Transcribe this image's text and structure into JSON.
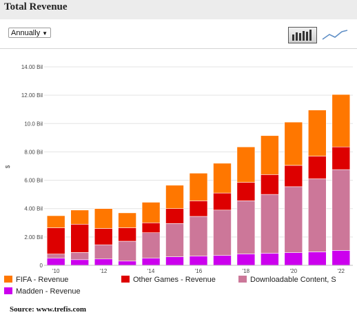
{
  "header": {
    "title": "Total Revenue"
  },
  "toolbar": {
    "period": "Annually",
    "bar_view_icon": "bar-chart-icon",
    "line_view_icon": "line-chart-icon"
  },
  "source": "Source: www.trefis.com",
  "chart_data": {
    "type": "bar",
    "stacked": true,
    "x": [
      2010,
      2011,
      2012,
      2013,
      2014,
      2015,
      2016,
      2017,
      2018,
      2019,
      2020,
      2021,
      2022
    ],
    "x_tick_labels": [
      "'10",
      "",
      "'12",
      "",
      "'14",
      "",
      "'16",
      "",
      "'18",
      "",
      "'20",
      "",
      "'22"
    ],
    "ylabel": "$",
    "ylim": [
      0,
      14
    ],
    "y_ticks": [
      0,
      2,
      4,
      6,
      8,
      10,
      12,
      14
    ],
    "y_tick_labels": [
      "0",
      "2.00 Bil",
      "4.00 Bil",
      "6.00 Bil",
      "8.00 Bil",
      "10.0 Bil",
      "12.00 Bil",
      "14.00 Bil"
    ],
    "grid": true,
    "legend_position": "bottom",
    "series": [
      {
        "name": "Madden - Revenue",
        "color": "#cc00ee",
        "values": [
          0.5,
          0.4,
          0.45,
          0.3,
          0.5,
          0.6,
          0.65,
          0.7,
          0.8,
          0.85,
          0.9,
          0.95,
          1.05
        ]
      },
      {
        "name": "Downloadable Content, S",
        "color": "#cc7799",
        "values": [
          0.3,
          0.5,
          1.0,
          1.4,
          1.8,
          2.35,
          2.8,
          3.2,
          3.75,
          4.15,
          4.65,
          5.15,
          5.7
        ]
      },
      {
        "name": "Other Games - Revenue",
        "color": "#dd0000",
        "values": [
          1.85,
          2.0,
          1.15,
          0.95,
          0.7,
          1.05,
          1.1,
          1.2,
          1.3,
          1.4,
          1.5,
          1.6,
          1.6
        ]
      },
      {
        "name": "FIFA - Revenue",
        "color": "#ff7700",
        "values": [
          0.85,
          1.0,
          1.4,
          1.05,
          1.45,
          1.65,
          1.95,
          2.1,
          2.5,
          2.75,
          3.05,
          3.25,
          3.7
        ]
      }
    ],
    "legend_order": [
      3,
      2,
      1,
      0
    ]
  }
}
